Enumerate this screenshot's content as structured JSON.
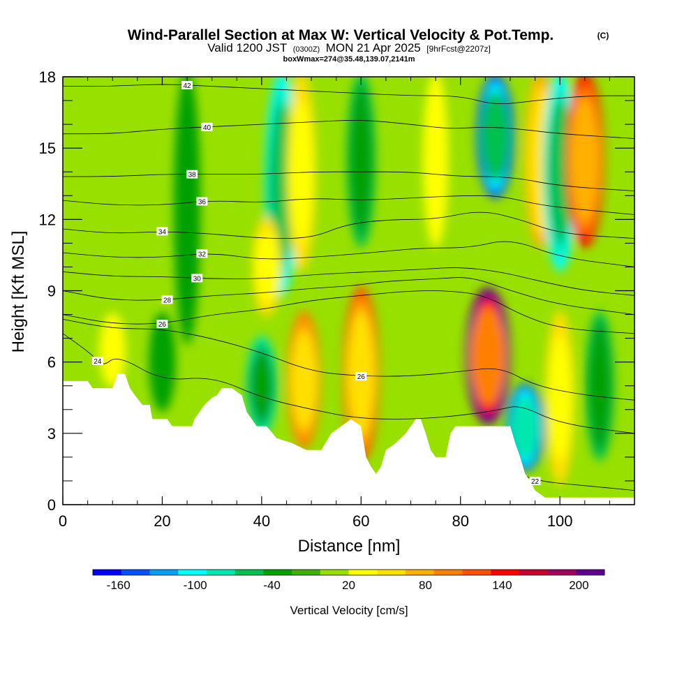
{
  "chart_data": {
    "type": "heatmap",
    "title": "Wind-Parallel Section at Max W: Vertical Velocity & Pot.Temp.",
    "title_mark": "(C)",
    "subtitle_prefix": "Valid 1200 JST",
    "subtitle_utc": "(0300Z)",
    "subtitle_date": "MON 21 Apr 2025",
    "subtitle_fcst": "[9hrFcst@2207z]",
    "subtitle2": "boxWmax=274@35.48,139.07,2141m",
    "xlabel": "Distance [nm]",
    "ylabel": "Height [Kft MSL]",
    "xlim": [
      0,
      115
    ],
    "ylim": [
      0,
      18
    ],
    "x_ticks": [
      "0",
      "20",
      "40",
      "60",
      "80",
      "100"
    ],
    "y_ticks": [
      "0",
      "3",
      "6",
      "9",
      "12",
      "15",
      "18"
    ],
    "colorbar": {
      "label": "Vertical Velocity [cm/s]",
      "min": -180,
      "max": 220,
      "tick_values": [
        -160,
        -100,
        -40,
        20,
        80,
        140,
        200
      ],
      "tick_labels": [
        "-160",
        "-100",
        "-40",
        "20",
        "80",
        "140",
        "200"
      ],
      "colors": [
        "#0000ff",
        "#0050ff",
        "#00a0ff",
        "#00ffff",
        "#00e8b0",
        "#00c050",
        "#00a000",
        "#40b000",
        "#98e000",
        "#ffff00",
        "#ffe000",
        "#ffb000",
        "#ff8000",
        "#ff5000",
        "#ff0000",
        "#c80030",
        "#a00060",
        "#600090"
      ]
    },
    "w_cells": [
      {
        "x": 25,
        "y0": 7,
        "y1": 18,
        "w": -40
      },
      {
        "x": 44,
        "y0": 9,
        "y1": 18,
        "w": -100
      },
      {
        "x": 48,
        "y0": 10,
        "y1": 18,
        "w": 60
      },
      {
        "x": 60,
        "y0": 11,
        "y1": 18,
        "w": -60
      },
      {
        "x": 75,
        "y0": 11,
        "y1": 18,
        "w": 30
      },
      {
        "x": 87,
        "y0": 13,
        "y1": 18,
        "w": -140
      },
      {
        "x": 96,
        "y0": 11,
        "y1": 18,
        "w": 80
      },
      {
        "x": 100,
        "y0": 10,
        "y1": 18,
        "w": -100
      },
      {
        "x": 105,
        "y0": 11,
        "y1": 18,
        "w": 140
      },
      {
        "x": 41,
        "y0": 8,
        "y1": 12,
        "w": 60
      },
      {
        "x": 40,
        "y0": 3,
        "y1": 7,
        "w": -80
      },
      {
        "x": 48.5,
        "y0": 2.5,
        "y1": 8,
        "w": 100
      },
      {
        "x": 60,
        "y0": 2,
        "y1": 9,
        "w": 120
      },
      {
        "x": 85.5,
        "y0": 3.5,
        "y1": 9,
        "w": 200
      },
      {
        "x": 93,
        "y0": 1.5,
        "y1": 5,
        "w": -150
      },
      {
        "x": 100,
        "y0": 1,
        "y1": 8,
        "w": 60
      },
      {
        "x": 108,
        "y0": 2,
        "y1": 8,
        "w": -60
      },
      {
        "x": 20,
        "y0": 4,
        "y1": 8,
        "w": -40
      },
      {
        "x": 10,
        "y0": 5,
        "y1": 8,
        "w": 40
      }
    ],
    "theta_lines": [
      {
        "label": "22",
        "label_x": 95,
        "pts": [
          [
            90,
            1.5
          ],
          [
            95,
            1.0
          ],
          [
            105,
            0.8
          ],
          [
            115,
            0.6
          ]
        ]
      },
      {
        "label": "24",
        "label_x": 7,
        "pts": [
          [
            0,
            7.2
          ],
          [
            6,
            6.3
          ],
          [
            8,
            5.8
          ],
          [
            11,
            6.3
          ],
          [
            20,
            5.2
          ],
          [
            30,
            5.4
          ],
          [
            40,
            4.5
          ],
          [
            50,
            4.0
          ],
          [
            60,
            3.6
          ],
          [
            72,
            3.6
          ],
          [
            82,
            3.8
          ],
          [
            88,
            4.0
          ],
          [
            92,
            4.2
          ],
          [
            100,
            3.4
          ],
          [
            115,
            3.0
          ]
        ]
      },
      {
        "label": "26",
        "label_x": 60,
        "pts": [
          [
            0,
            7.8
          ],
          [
            10,
            7.4
          ],
          [
            20,
            7.4
          ],
          [
            30,
            7.0
          ],
          [
            40,
            6.4
          ],
          [
            50,
            5.6
          ],
          [
            60,
            5.4
          ],
          [
            70,
            5.4
          ],
          [
            80,
            5.6
          ],
          [
            88,
            5.8
          ],
          [
            95,
            5.0
          ],
          [
            105,
            4.6
          ],
          [
            115,
            4.4
          ]
        ]
      },
      {
        "label": "26",
        "label_x": 20,
        "pts": [
          [
            0,
            8.0
          ],
          [
            10,
            7.6
          ],
          [
            20,
            7.6
          ],
          [
            30,
            8.0
          ],
          [
            40,
            8.2
          ],
          [
            50,
            8.6
          ],
          [
            60,
            8.8
          ],
          [
            70,
            9.0
          ],
          [
            78,
            9.0
          ],
          [
            85,
            8.8
          ],
          [
            92,
            8.0
          ],
          [
            100,
            7.4
          ],
          [
            115,
            7.2
          ]
        ]
      },
      {
        "label": "28",
        "label_x": 21,
        "pts": [
          [
            0,
            9.0
          ],
          [
            10,
            8.6
          ],
          [
            20,
            8.6
          ],
          [
            30,
            8.8
          ],
          [
            40,
            8.9
          ],
          [
            50,
            9.1
          ],
          [
            58,
            9.2
          ],
          [
            65,
            9.4
          ],
          [
            75,
            9.5
          ],
          [
            82,
            9.6
          ],
          [
            90,
            9.0
          ],
          [
            100,
            8.4
          ],
          [
            115,
            8.0
          ]
        ]
      },
      {
        "label": "30",
        "label_x": 27,
        "pts": [
          [
            0,
            9.8
          ],
          [
            10,
            9.6
          ],
          [
            20,
            9.6
          ],
          [
            30,
            9.5
          ],
          [
            40,
            9.5
          ],
          [
            52,
            9.7
          ],
          [
            62,
            9.8
          ],
          [
            72,
            9.9
          ],
          [
            80,
            10.0
          ],
          [
            88,
            9.8
          ],
          [
            96,
            9.4
          ],
          [
            105,
            9.0
          ],
          [
            115,
            8.8
          ]
        ]
      },
      {
        "label": "32",
        "label_x": 28,
        "pts": [
          [
            0,
            10.6
          ],
          [
            10,
            10.4
          ],
          [
            20,
            10.4
          ],
          [
            30,
            10.6
          ],
          [
            40,
            10.3
          ],
          [
            50,
            10.4
          ],
          [
            62,
            10.6
          ],
          [
            72,
            10.8
          ],
          [
            82,
            10.8
          ],
          [
            90,
            11.2
          ],
          [
            100,
            10.4
          ],
          [
            115,
            10.0
          ]
        ]
      },
      {
        "label": "34",
        "label_x": 20,
        "pts": [
          [
            0,
            11.6
          ],
          [
            10,
            11.4
          ],
          [
            20,
            11.5
          ],
          [
            30,
            11.4
          ],
          [
            40,
            11.2
          ],
          [
            50,
            11.2
          ],
          [
            57,
            11.8
          ],
          [
            66,
            12.0
          ],
          [
            75,
            12.0
          ],
          [
            84,
            12.4
          ],
          [
            92,
            12.0
          ],
          [
            100,
            11.4
          ],
          [
            115,
            11.2
          ]
        ]
      },
      {
        "label": "36",
        "label_x": 28,
        "pts": [
          [
            0,
            12.8
          ],
          [
            10,
            12.6
          ],
          [
            20,
            12.6
          ],
          [
            30,
            12.8
          ],
          [
            40,
            12.7
          ],
          [
            50,
            12.9
          ],
          [
            60,
            12.8
          ],
          [
            70,
            12.9
          ],
          [
            80,
            13.0
          ],
          [
            88,
            13.0
          ],
          [
            96,
            12.6
          ],
          [
            105,
            12.4
          ],
          [
            115,
            12.2
          ]
        ]
      },
      {
        "label": "38",
        "label_x": 26,
        "pts": [
          [
            0,
            13.8
          ],
          [
            10,
            13.8
          ],
          [
            20,
            13.9
          ],
          [
            30,
            13.9
          ],
          [
            40,
            13.9
          ],
          [
            50,
            14.0
          ],
          [
            60,
            14.0
          ],
          [
            70,
            14.0
          ],
          [
            80,
            13.8
          ],
          [
            90,
            13.8
          ],
          [
            100,
            13.4
          ],
          [
            115,
            13.2
          ]
        ]
      },
      {
        "label": "40",
        "label_x": 29,
        "pts": [
          [
            0,
            15.6
          ],
          [
            10,
            15.6
          ],
          [
            20,
            15.8
          ],
          [
            30,
            15.9
          ],
          [
            40,
            16.0
          ],
          [
            50,
            16.1
          ],
          [
            60,
            16.2
          ],
          [
            70,
            16.0
          ],
          [
            78,
            15.8
          ],
          [
            85,
            15.9
          ],
          [
            92,
            15.8
          ],
          [
            100,
            15.6
          ],
          [
            115,
            15.4
          ]
        ]
      },
      {
        "label": "42",
        "label_x": 25,
        "pts": [
          [
            0,
            17.6
          ],
          [
            10,
            17.6
          ],
          [
            20,
            17.7
          ],
          [
            30,
            17.6
          ],
          [
            40,
            17.5
          ],
          [
            50,
            17.4
          ],
          [
            60,
            17.3
          ],
          [
            70,
            17.2
          ],
          [
            80,
            17.2
          ],
          [
            87,
            16.8
          ],
          [
            95,
            17.0
          ],
          [
            105,
            17.2
          ],
          [
            115,
            17.2
          ]
        ]
      }
    ],
    "terrain": [
      [
        0,
        5.2
      ],
      [
        5,
        5.2
      ],
      [
        6,
        4.9
      ],
      [
        10,
        4.9
      ],
      [
        11,
        5.5
      ],
      [
        12.5,
        5.5
      ],
      [
        13.5,
        4.9
      ],
      [
        14.5,
        4.6
      ],
      [
        16,
        4.2
      ],
      [
        17.5,
        4.2
      ],
      [
        18,
        3.6
      ],
      [
        21,
        3.6
      ],
      [
        22,
        3.3
      ],
      [
        26,
        3.3
      ],
      [
        26.5,
        3.6
      ],
      [
        27.5,
        3.9
      ],
      [
        28.5,
        4.2
      ],
      [
        30,
        4.5
      ],
      [
        31,
        4.6
      ],
      [
        32,
        4.9
      ],
      [
        34,
        4.9
      ],
      [
        36,
        4.6
      ],
      [
        37,
        3.9
      ],
      [
        38,
        3.6
      ],
      [
        39,
        3.3
      ],
      [
        41,
        3.3
      ],
      [
        43,
        2.8
      ],
      [
        46,
        2.6
      ],
      [
        49,
        2.3
      ],
      [
        52,
        2.3
      ],
      [
        54,
        3.0
      ],
      [
        56,
        3.3
      ],
      [
        58,
        3.6
      ],
      [
        60,
        3.3
      ],
      [
        61,
        2.0
      ],
      [
        62,
        1.6
      ],
      [
        63,
        1.3
      ],
      [
        64,
        1.6
      ],
      [
        65,
        2.3
      ],
      [
        67,
        2.6
      ],
      [
        69,
        3.0
      ],
      [
        71,
        3.6
      ],
      [
        72,
        3.6
      ],
      [
        73,
        3.0
      ],
      [
        74,
        2.3
      ],
      [
        75,
        2.0
      ],
      [
        77,
        2.0
      ],
      [
        78,
        3.0
      ],
      [
        79,
        3.3
      ],
      [
        90,
        3.3
      ],
      [
        91,
        2.6
      ],
      [
        92,
        2.0
      ],
      [
        93,
        1.3
      ],
      [
        94,
        1.0
      ],
      [
        95,
        0.6
      ],
      [
        97,
        0.3
      ],
      [
        115,
        0.3
      ]
    ]
  }
}
